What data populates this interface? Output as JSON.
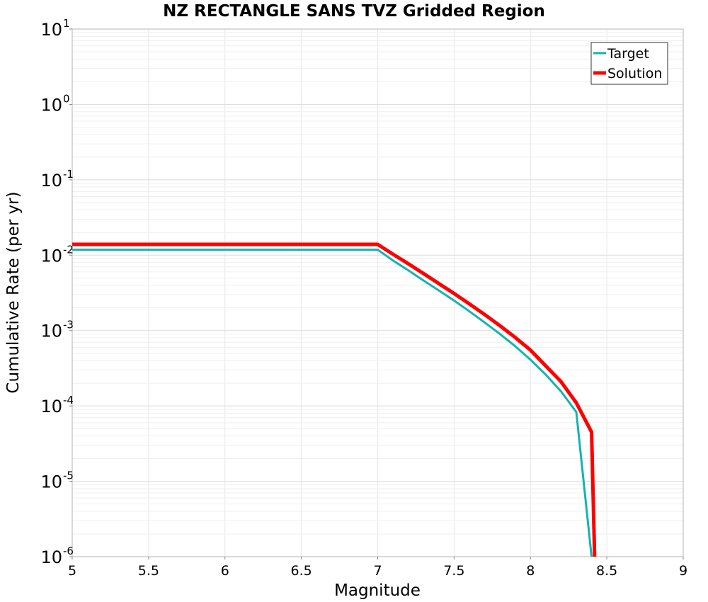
{
  "chart_data": {
    "type": "line",
    "title": "NZ RECTANGLE SANS TVZ Gridded Region",
    "xlabel": "Magnitude",
    "ylabel": "Cumulative Rate (per yr)",
    "xlim": [
      5,
      9
    ],
    "ylim": [
      1e-06,
      10
    ],
    "yscale": "log",
    "grid": true,
    "legend_position": "top-right",
    "x_ticks": [
      "5",
      "5.5",
      "6",
      "6.5",
      "7",
      "7.5",
      "8",
      "8.5",
      "9"
    ],
    "y_ticks": [
      {
        "base": "10",
        "exp": "-6",
        "value": 1e-06
      },
      {
        "base": "10",
        "exp": "-5",
        "value": 1e-05
      },
      {
        "base": "10",
        "exp": "-4",
        "value": 0.0001
      },
      {
        "base": "10",
        "exp": "-3",
        "value": 0.001
      },
      {
        "base": "10",
        "exp": "-2",
        "value": 0.01
      },
      {
        "base": "10",
        "exp": "-1",
        "value": 0.1
      },
      {
        "base": "10",
        "exp": "0",
        "value": 1
      },
      {
        "base": "10",
        "exp": "1",
        "value": 10
      }
    ],
    "series": [
      {
        "name": "Target",
        "color": "#14b3b3",
        "x": [
          5.0,
          7.0,
          7.1,
          7.2,
          7.3,
          7.4,
          7.5,
          7.6,
          7.7,
          7.8,
          7.9,
          8.0,
          8.1,
          8.2,
          8.3,
          8.4
        ],
        "y": [
          0.0118,
          0.0118,
          0.0085,
          0.0063,
          0.0046,
          0.0034,
          0.0025,
          0.0018,
          0.00128,
          0.0009,
          0.00062,
          0.00041,
          0.00026,
          0.000156,
          8.3e-05,
          4.2e-07
        ]
      },
      {
        "name": "Solution",
        "color": "#ff0000",
        "x": [
          5.0,
          7.0,
          7.1,
          7.2,
          7.3,
          7.4,
          7.5,
          7.6,
          7.7,
          7.8,
          7.9,
          8.0,
          8.1,
          8.2,
          8.3,
          8.4,
          8.42
        ],
        "y": [
          0.0139,
          0.0139,
          0.0103,
          0.0077,
          0.0057,
          0.0042,
          0.0031,
          0.00226,
          0.00163,
          0.00116,
          0.00081,
          0.00055,
          0.00034,
          0.00021,
          0.00011,
          4.5e-05,
          1e-06
        ]
      }
    ]
  }
}
